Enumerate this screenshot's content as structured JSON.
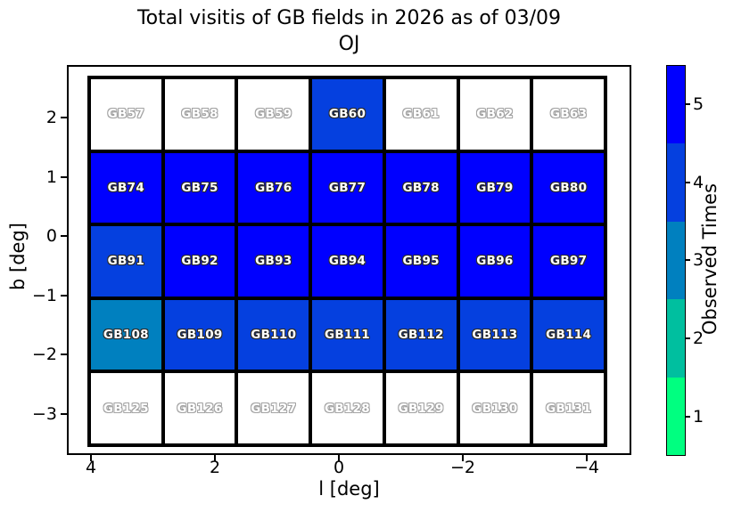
{
  "chart_data": {
    "type": "heatmap",
    "title": "Total visitis of GB fields in 2026 as of 03/09",
    "subtitle": "OJ",
    "xlabel": "l [deg]",
    "ylabel": "b [deg]",
    "x_tick_labels": [
      "4",
      "2",
      "0",
      "−2",
      "−4"
    ],
    "y_tick_labels": [
      "2",
      "1",
      "0",
      "−1",
      "−2",
      "−3"
    ],
    "grid_on": false,
    "x_axis_reversed": true,
    "unobserved_color": "#FFFFFF",
    "colorbar": {
      "label": "Observed Times",
      "tick_labels_top_to_bottom": [
        "5",
        "4",
        "3",
        "2",
        "1"
      ],
      "levels_top_to_bottom": [
        {
          "value": 5,
          "color": "#0000FF"
        },
        {
          "value": 4,
          "color": "#0540DF"
        },
        {
          "value": 3,
          "color": "#0080BF"
        },
        {
          "value": 2,
          "color": "#00BF9F"
        },
        {
          "value": 1,
          "color": "#00FF80"
        }
      ]
    },
    "rows": [
      {
        "b_center": 2,
        "fields": [
          {
            "label": "GB57",
            "visits": null
          },
          {
            "label": "GB58",
            "visits": null
          },
          {
            "label": "GB59",
            "visits": null
          },
          {
            "label": "GB60",
            "visits": 4
          },
          {
            "label": "GB61",
            "visits": null
          },
          {
            "label": "GB62",
            "visits": null
          },
          {
            "label": "GB63",
            "visits": null
          }
        ]
      },
      {
        "b_center": 1,
        "fields": [
          {
            "label": "GB74",
            "visits": 5
          },
          {
            "label": "GB75",
            "visits": 5
          },
          {
            "label": "GB76",
            "visits": 5
          },
          {
            "label": "GB77",
            "visits": 5
          },
          {
            "label": "GB78",
            "visits": 5
          },
          {
            "label": "GB79",
            "visits": 5
          },
          {
            "label": "GB80",
            "visits": 5
          }
        ]
      },
      {
        "b_center": 0,
        "fields": [
          {
            "label": "GB91",
            "visits": 4
          },
          {
            "label": "GB92",
            "visits": 5
          },
          {
            "label": "GB93",
            "visits": 5
          },
          {
            "label": "GB94",
            "visits": 5
          },
          {
            "label": "GB95",
            "visits": 5
          },
          {
            "label": "GB96",
            "visits": 5
          },
          {
            "label": "GB97",
            "visits": 5
          }
        ]
      },
      {
        "b_center": -1.5,
        "fields": [
          {
            "label": "GB108",
            "visits": 3
          },
          {
            "label": "GB109",
            "visits": 4
          },
          {
            "label": "GB110",
            "visits": 4
          },
          {
            "label": "GB111",
            "visits": 4
          },
          {
            "label": "GB112",
            "visits": 4
          },
          {
            "label": "GB113",
            "visits": 4
          },
          {
            "label": "GB114",
            "visits": 4
          }
        ]
      },
      {
        "b_center": -3,
        "fields": [
          {
            "label": "GB125",
            "visits": null
          },
          {
            "label": "GB126",
            "visits": null
          },
          {
            "label": "GB127",
            "visits": null
          },
          {
            "label": "GB128",
            "visits": null
          },
          {
            "label": "GB129",
            "visits": null
          },
          {
            "label": "GB130",
            "visits": null
          },
          {
            "label": "GB131",
            "visits": null
          }
        ]
      }
    ]
  }
}
